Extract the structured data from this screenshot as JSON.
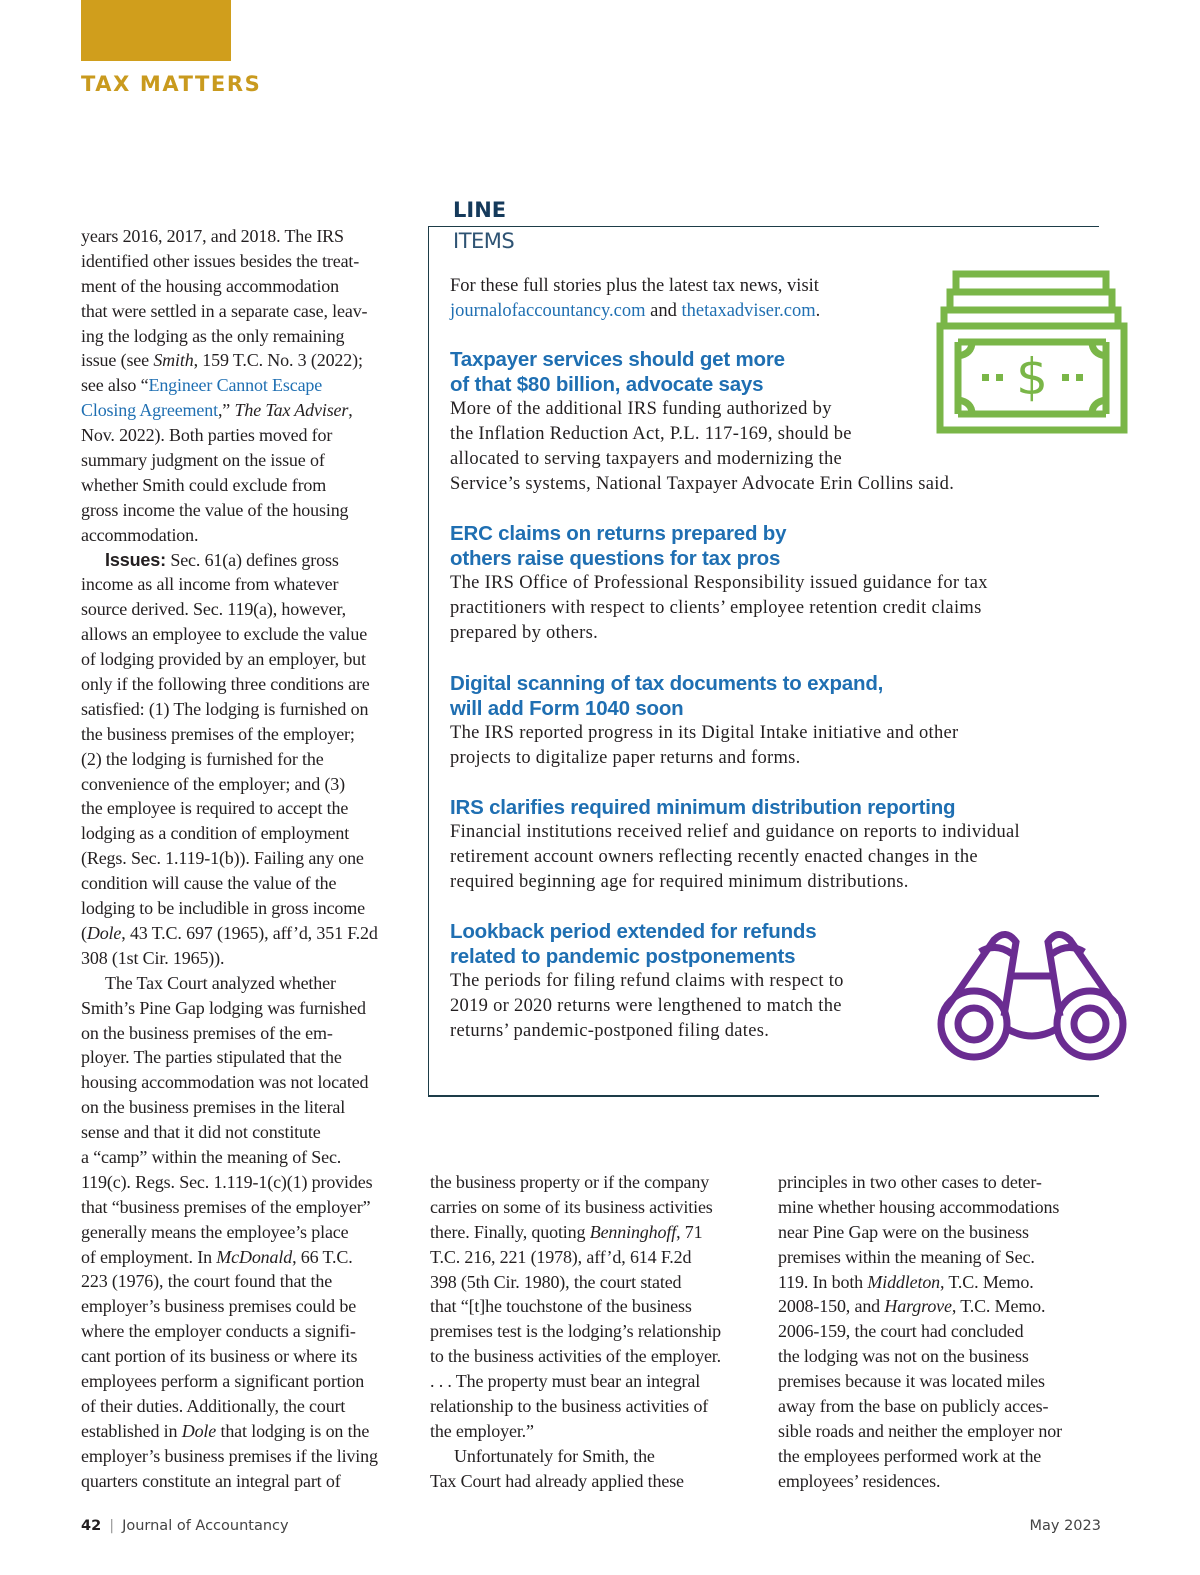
{
  "header": {
    "section": "TAX MATTERS",
    "accent_color": "#d09e1c"
  },
  "left_column": [
    "years 2016, 2017, and 2018. The IRS",
    "identified other issues besides the treat-",
    "ment of the housing accommodation",
    "that were settled in a separate case, leav-",
    "ing the lodging as the only remaining",
    [
      "issue (see ",
      {
        "i": "Smith"
      },
      ", 159 T.C. No. 3 (2022);"
    ],
    [
      "see also “",
      {
        "a": "Engineer Cannot Escape"
      }
    ],
    [
      {
        "a": "Closing Agreement"
      },
      ",” ",
      {
        "i": "The Tax Adviser"
      },
      ","
    ],
    "Nov. 2022). Both parties moved for",
    "summary judgment on the issue of",
    "whether Smith could exclude from",
    "gross income the value of the housing",
    "accommodation.",
    {
      "indent": [
        {
          "b": "Issues:"
        },
        " Sec. 61(a) defines gross"
      ]
    },
    "income as all income from whatever",
    "source derived. Sec. 119(a), however,",
    "allows an employee to exclude the value",
    "of lodging provided by an employer, but",
    "only if the following three conditions are",
    "satisfied: (1) The lodging is furnished on",
    "the business premises of the employer;",
    "(2) the lodging is furnished for the",
    "convenience of the employer; and (3)",
    "the employee is required to accept the",
    "lodging as a condition of employment",
    "(Regs. Sec. 1.119-1(b)). Failing any one",
    "condition will cause the value of the",
    "lodging to be includible in gross income",
    [
      "(",
      {
        "i": "Dole"
      },
      ", 43 T.C. 697 (1965), aff’d, 351 F.2d"
    ],
    "308 (1st Cir. 1965)).",
    {
      "indent": [
        "The Tax Court analyzed whether"
      ]
    },
    "Smith’s Pine Gap lodging was furnished",
    "on the business premises of the em-",
    "ployer. The parties stipulated that the",
    "housing accommodation was not located",
    "on the business premises in the literal",
    "sense and that it did not constitute",
    "a “camp” within the meaning of Sec.",
    "119(c). Regs. Sec. 1.119-1(c)(1) provides",
    "that “business premises of the employer”",
    "generally means the employee’s place",
    [
      "of employment. In ",
      {
        "i": "McDonald"
      },
      ", 66 T.C."
    ],
    "223 (1976), the court found that the",
    "employer’s business premises could be",
    "where the employer conducts a signifi-",
    "cant portion of its business or where its",
    "employees perform a significant portion",
    "of their duties. Additionally, the court",
    [
      "established in ",
      {
        "i": "Dole"
      },
      " that lodging is on the"
    ],
    "employer’s business premises if the living",
    "quarters constitute an integral part of"
  ],
  "middle_column": [
    "the business property or if the company",
    "carries on some of its business activities",
    [
      "there. Finally, quoting ",
      {
        "i": "Benninghoff"
      },
      ", 71"
    ],
    "T.C. 216, 221 (1978), aff’d, 614 F.2d",
    "398 (5th Cir. 1980), the court stated",
    "that “[t]he touchstone of the business",
    "premises test is the lodging’s relationship",
    "to the business activities of the employer.",
    ". . . The property must bear an integral",
    "relationship to the business activities of",
    "the employer.”",
    {
      "indent": [
        "Unfortunately for Smith, the"
      ]
    },
    "Tax Court had already applied these"
  ],
  "right_column": [
    "principles in two other cases to deter-",
    "mine whether housing accommodations",
    "near Pine Gap were on the business",
    "premises within the meaning of Sec.",
    [
      "119. In both ",
      {
        "i": "Middleton"
      },
      ", T.C. Memo."
    ],
    [
      "2008-150, and ",
      {
        "i": "Hargrove"
      },
      ", T.C. Memo."
    ],
    "2006-159, the court had concluded",
    "the lodging was not on the business",
    "premises because it was located miles",
    "away from the base on publicly acces-",
    "sible roads and neither the employer nor",
    "the employees performed work at the",
    "employees’ residences."
  ],
  "line_items": {
    "title_line1": "LINE",
    "title_line2": "ITEMS",
    "intro_text": "For these full stories plus the latest tax news, visit",
    "link1": "journalofaccountancy.com",
    "and_text": " and ",
    "link2": "thetaxadviser.com",
    "period": ".",
    "link_color": "#1f6fb2",
    "items": [
      {
        "headline": [
          "Taxpayer services should get more",
          "of that $80 billion, advocate says"
        ],
        "body": [
          "More of the additional IRS funding authorized by",
          "the Inflation Reduction Act, P.L. 117-169, should be",
          "allocated to serving taxpayers and modernizing the",
          "Service’s systems, National Taxpayer Advocate Erin Collins said."
        ]
      },
      {
        "headline": [
          "ERC claims on returns prepared by",
          "others raise questions for tax pros"
        ],
        "body": [
          "The IRS Office of Professional Responsibility issued guidance for tax",
          "practitioners with respect to clients’ employee retention credit claims",
          "prepared by others."
        ]
      },
      {
        "headline": [
          "Digital scanning of tax documents to expand,",
          "will add Form 1040 soon"
        ],
        "body": [
          "The IRS reported progress in its Digital Intake initiative and other",
          "projects to digitalize paper returns and forms."
        ]
      },
      {
        "headline": [
          "IRS clarifies required minimum distribution reporting"
        ],
        "body": [
          "Financial institutions received relief and guidance on reports to individual",
          "retirement account owners reflecting recently enacted changes in the",
          "required beginning age for required minimum distributions."
        ]
      },
      {
        "headline": [
          "Lookback period extended for refunds",
          "related to pandemic postponements"
        ],
        "body": [
          "The periods for filing refund claims with respect to",
          "2019 or 2020 returns were lengthened to match the",
          "returns’ pandemic-postponed filing dates."
        ]
      }
    ],
    "icons": [
      {
        "name": "money-stack-icon",
        "color": "#7ab648"
      },
      {
        "name": "binoculars-icon",
        "color": "#6a2c91"
      }
    ]
  },
  "footer": {
    "page_number": "42",
    "separator": "|",
    "publication": "Journal of Accountancy",
    "date": "May 2023"
  }
}
